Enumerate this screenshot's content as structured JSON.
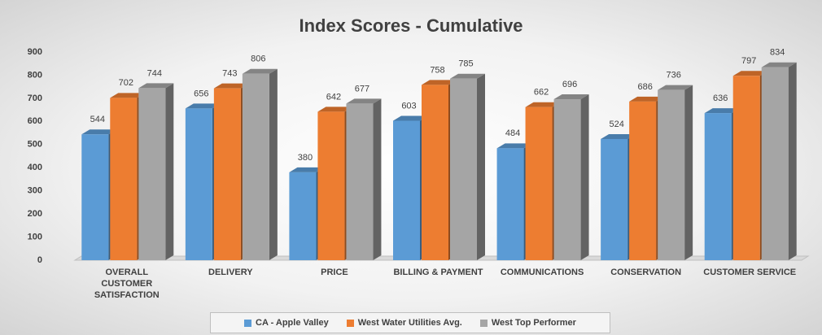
{
  "chart_data": {
    "type": "bar",
    "title": "Index Scores - Cumulative",
    "categories": [
      "OVERALL CUSTOMER SATISFACTION",
      "DELIVERY",
      "PRICE",
      "BILLING & PAYMENT",
      "COMMUNICATIONS",
      "CONSERVATION",
      "CUSTOMER SERVICE"
    ],
    "series": [
      {
        "name": "CA - Apple Valley",
        "color": "#5b9bd5",
        "values": [
          544,
          656,
          380,
          603,
          484,
          524,
          636
        ]
      },
      {
        "name": "West Water Utilities Avg.",
        "color": "#ed7d31",
        "values": [
          702,
          743,
          642,
          758,
          662,
          686,
          797
        ]
      },
      {
        "name": "West Top Performer",
        "color": "#a5a5a5",
        "values": [
          744,
          806,
          677,
          785,
          696,
          736,
          834
        ]
      }
    ],
    "ylim": [
      0,
      900
    ],
    "yticks": [
      0,
      100,
      200,
      300,
      400,
      500,
      600,
      700,
      800,
      900
    ],
    "grid": false,
    "legend": "bottom"
  }
}
